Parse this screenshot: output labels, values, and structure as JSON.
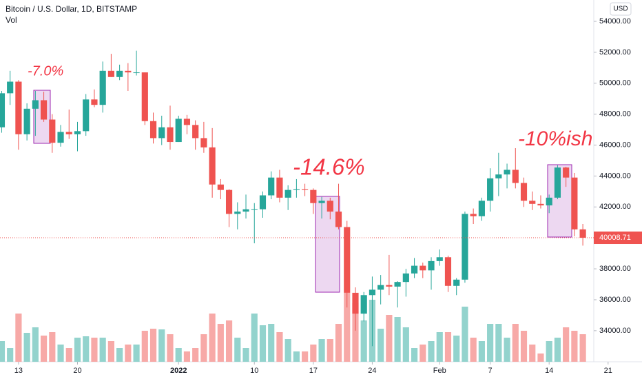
{
  "chart_data": {
    "type": "candlestick",
    "title": "Bitcoin / U.S. Dollar, 1D, BITSTAMP",
    "volume_label": "Vol",
    "currency": "USD",
    "up_color": "#26a69a",
    "down_color": "#ef5350",
    "volume_up_color": "#93d3cd",
    "volume_down_color": "#f7a9a7",
    "open": [
      47150,
      49350,
      50100,
      46700,
      48350,
      48900,
      47650,
      46150,
      46850,
      46700,
      46900,
      48950,
      48600,
      50800,
      50400,
      50800,
      50700,
      50700,
      47550,
      46450,
      47150,
      46200,
      47700,
      47300,
      46450,
      45850,
      43450,
      43100,
      41550,
      41700,
      41850,
      41850,
      42750,
      43900,
      42600,
      43100,
      43150,
      43100,
      42250,
      42400,
      41700,
      40700,
      36450,
      35100,
      36300,
      36650,
      36950,
      36850,
      37150,
      37700,
      38200,
      37900,
      38500,
      38750,
      36900,
      37300,
      41550,
      41400,
      42400,
      43850,
      44100,
      44400,
      43550,
      42400,
      42200,
      42100,
      42600,
      44550,
      43900,
      40550
    ],
    "high": [
      49500,
      50800,
      50200,
      48700,
      49500,
      49450,
      48000,
      47300,
      48300,
      47500,
      49300,
      49600,
      51400,
      51900,
      51200,
      51300,
      52100,
      50700,
      48100,
      47900,
      48550,
      47900,
      47950,
      47600,
      47500,
      47100,
      43800,
      43150,
      42300,
      42800,
      42250,
      43000,
      44300,
      44400,
      43400,
      43800,
      43500,
      43200,
      42650,
      42600,
      43500,
      41100,
      36800,
      36500,
      37500,
      37600,
      38900,
      37200,
      38000,
      38700,
      38400,
      38750,
      39250,
      38850,
      37400,
      41700,
      41900,
      42600,
      44500,
      45500,
      44800,
      45800,
      43900,
      43000,
      42750,
      42800,
      44700,
      44600,
      44200,
      40900
    ],
    "low": [
      46800,
      48600,
      45700,
      46300,
      46600,
      47500,
      45500,
      45900,
      46400,
      45600,
      46600,
      48450,
      48100,
      50400,
      50200,
      49500,
      50500,
      47300,
      46100,
      46000,
      45700,
      46200,
      46700,
      45700,
      45500,
      42600,
      42500,
      40700,
      40550,
      41250,
      39650,
      41300,
      42500,
      42300,
      41800,
      42600,
      42700,
      41550,
      41250,
      41200,
      40550,
      35500,
      34000,
      34600,
      33000,
      35700,
      36300,
      35500,
      36200,
      37400,
      37400,
      36650,
      38200,
      36500,
      36300,
      37100,
      40900,
      41100,
      41700,
      42700,
      43200,
      43200,
      42000,
      41800,
      41900,
      41600,
      42500,
      43300,
      40100,
      39500
    ],
    "close": [
      49350,
      50100,
      46700,
      48350,
      48900,
      47650,
      46150,
      46850,
      46700,
      46900,
      48950,
      48600,
      50800,
      50400,
      50800,
      50700,
      50700,
      47550,
      46450,
      47150,
      46200,
      47700,
      47300,
      46450,
      45850,
      43450,
      43100,
      41550,
      41700,
      41850,
      41850,
      42750,
      43900,
      42600,
      43100,
      43150,
      43100,
      42250,
      42400,
      41700,
      40700,
      36450,
      35100,
      36300,
      36650,
      36950,
      36850,
      37150,
      37700,
      38200,
      37900,
      38500,
      38750,
      36900,
      37300,
      41550,
      41400,
      42400,
      43850,
      44100,
      44400,
      43550,
      42400,
      42200,
      42100,
      42600,
      44550,
      43900,
      40550,
      40008.71
    ],
    "volume": [
      3000,
      2000,
      7000,
      4200,
      5000,
      3800,
      4300,
      2500,
      2000,
      3500,
      3700,
      3500,
      3500,
      3000,
      2000,
      2500,
      2500,
      4500,
      4800,
      4700,
      4000,
      2000,
      1500,
      2000,
      4000,
      7000,
      5500,
      6000,
      3500,
      2000,
      7000,
      5300,
      5500,
      4300,
      3300,
      1500,
      1500,
      2500,
      3300,
      3300,
      5500,
      10000,
      8500,
      6000,
      9000,
      4800,
      6800,
      6500,
      5000,
      2000,
      2500,
      3000,
      4300,
      4300,
      3800,
      8000,
      3500,
      3000,
      5500,
      5500,
      3500,
      5500,
      4500,
      2500,
      1200,
      3000,
      3500,
      5000,
      4500,
      4000
    ],
    "last_price": 40008.71,
    "ylim": [
      31990,
      55380
    ],
    "xlim": [
      -0.2,
      70.3
    ],
    "volume_lim": [
      0,
      12000
    ],
    "yticks": [
      {
        "value": 34000,
        "label": "34000.00"
      },
      {
        "value": 36000,
        "label": "36000.00"
      },
      {
        "value": 38000,
        "label": "38000.00"
      },
      {
        "value": 40000,
        "label": "40000.00"
      },
      {
        "value": 42000,
        "label": "42000.00"
      },
      {
        "value": 44000,
        "label": "44000.00"
      },
      {
        "value": 46000,
        "label": "46000.00"
      },
      {
        "value": 48000,
        "label": "48000.00"
      },
      {
        "value": 50000,
        "label": "50000.00"
      },
      {
        "value": 52000,
        "label": "52000.00"
      },
      {
        "value": 54000,
        "label": "54000.00"
      }
    ],
    "xticks": [
      {
        "value": 2,
        "label": "13"
      },
      {
        "value": 9,
        "label": "20"
      },
      {
        "value": 21,
        "label": "2022"
      },
      {
        "value": 30,
        "label": "10"
      },
      {
        "value": 37,
        "label": "17"
      },
      {
        "value": 44,
        "label": "24"
      },
      {
        "value": 52,
        "label": "Feb"
      },
      {
        "value": 58,
        "label": "7"
      },
      {
        "value": 65,
        "label": "14"
      },
      {
        "value": 72,
        "label": "21"
      }
    ],
    "annotations": [
      "-7.0%",
      "-14.6%",
      "-10%ish"
    ]
  }
}
